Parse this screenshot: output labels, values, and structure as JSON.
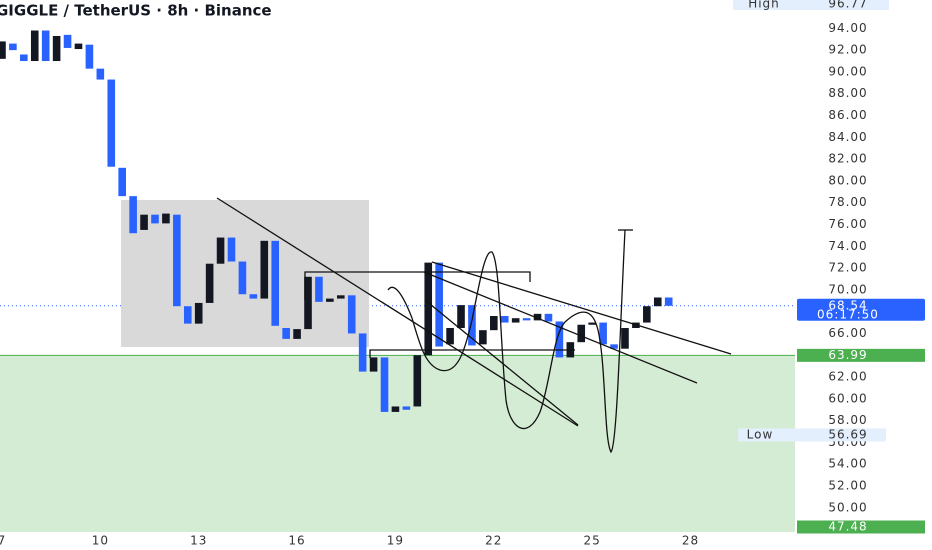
{
  "chart_data": {
    "type": "candlestick",
    "title": "GIGGLE / TetherUS · 8h · Binance",
    "categories": [
      "7",
      null,
      null,
      null,
      null,
      null,
      null,
      null,
      null,
      "10",
      null,
      null,
      null,
      null,
      null,
      null,
      null,
      null,
      "13",
      null,
      null,
      null,
      null,
      null,
      null,
      null,
      null,
      "16",
      null,
      null,
      null,
      null,
      null,
      null,
      null,
      null,
      "19",
      null,
      null,
      null,
      null,
      null,
      null,
      null,
      null,
      "22",
      null,
      null,
      null,
      null,
      null,
      null,
      null,
      null,
      "25",
      null,
      null,
      null,
      null,
      null,
      null,
      null,
      null,
      "28"
    ],
    "open": [
      91.2,
      92.6,
      91.6,
      91.0,
      93.8,
      91.0,
      93.4,
      92.1,
      92.5,
      90.3,
      89.3,
      81.2,
      78.6,
      75.5,
      76.9,
      76.1,
      76.9,
      68.5,
      66.9,
      68.8,
      72.4,
      74.8,
      72.6,
      69.6,
      69.2,
      74.5,
      66.5,
      65.5,
      66.4,
      71.2,
      68.9,
      69.2,
      69.5,
      66.0,
      62.5,
      63.8,
      58.8,
      59.3,
      59.3,
      64.0,
      72.5,
      65.0,
      66.5,
      68.6,
      65.0,
      66.3,
      67.6,
      67.0,
      67.4,
      67.2,
      67.8,
      67.1,
      63.8,
      65.2,
      66.8,
      67.0,
      65.0,
      64.6,
      66.5,
      67.0,
      68.5,
      69.3,
      null,
      null
    ],
    "high": 96.77,
    "low": 56.69,
    "close": [
      92.8,
      92.0,
      91.0,
      93.8,
      91.0,
      93.3,
      92.2,
      92.6,
      90.3,
      89.3,
      81.3,
      78.6,
      75.2,
      76.9,
      76.1,
      77.0,
      68.5,
      66.9,
      68.8,
      72.4,
      74.8,
      72.6,
      69.6,
      69.2,
      74.5,
      66.7,
      65.5,
      66.4,
      71.2,
      68.9,
      69.2,
      69.5,
      66.0,
      62.5,
      63.8,
      58.8,
      59.3,
      59.0,
      64.0,
      72.5,
      64.8,
      66.5,
      68.6,
      64.9,
      66.3,
      67.6,
      67.0,
      67.4,
      67.2,
      67.8,
      67.1,
      63.8,
      65.2,
      66.8,
      67.0,
      65.0,
      64.6,
      66.5,
      67.0,
      68.5,
      69.3,
      68.54,
      null,
      null
    ],
    "up_color": "#131722",
    "down_color": "#2962ff",
    "ylim": [
      47.78,
      96.6
    ],
    "yticks": [
      {
        "value": 50,
        "label": "50.00"
      },
      {
        "value": 52,
        "label": "52.00"
      },
      {
        "value": 54,
        "label": "54.00"
      },
      {
        "value": 56,
        "label": "56.00"
      },
      {
        "value": 58,
        "label": "58.00"
      },
      {
        "value": 60,
        "label": "60.00"
      },
      {
        "value": 62,
        "label": "62.00"
      },
      {
        "value": 64,
        "label": "64.00"
      },
      {
        "value": 66,
        "label": "66.00"
      },
      {
        "value": 68,
        "label": "68.00"
      },
      {
        "value": 70,
        "label": "70.00"
      },
      {
        "value": 72,
        "label": "72.00"
      },
      {
        "value": 74,
        "label": "74.00"
      },
      {
        "value": 76,
        "label": "76.00"
      },
      {
        "value": 78,
        "label": "78.00"
      },
      {
        "value": 80,
        "label": "80.00"
      },
      {
        "value": 82,
        "label": "82.00"
      },
      {
        "value": 84,
        "label": "84.00"
      },
      {
        "value": 86,
        "label": "86.00"
      },
      {
        "value": 88,
        "label": "88.00"
      },
      {
        "value": 90,
        "label": "90.00"
      },
      {
        "value": 92,
        "label": "92.00"
      },
      {
        "value": 94,
        "label": "94.00"
      }
    ],
    "grid": false,
    "high_label": "High",
    "low_label": "Low",
    "last_price": 68.54,
    "countdown": "06:17:50",
    "support": 63.99,
    "zone_bottom": 47.48
  }
}
